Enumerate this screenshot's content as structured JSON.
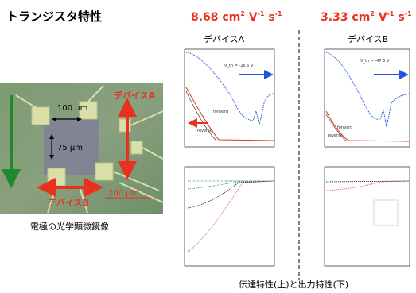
{
  "header": {
    "title": "トランジスタ特性"
  },
  "micrograph": {
    "caption": "電極の光学顕微鏡像",
    "labels": [
      "100 μm",
      "75 μm",
      "200 μm"
    ],
    "device_a": "デバイスA",
    "device_b": "デバイスB"
  },
  "devices": [
    {
      "name": "デバイスA",
      "mobility": [
        "8.68 cm",
        "2",
        " V",
        "-1",
        " s",
        "-1"
      ],
      "vth": "V_th = -26.5 V",
      "forward": "forward",
      "reverse": "reverse"
    },
    {
      "name": "デバイスB",
      "mobility": [
        "3.33 cm",
        "2",
        " V",
        "-1",
        " s",
        "-1"
      ],
      "vth": "V_th = -47.6 V",
      "forward": "forward",
      "reverse": "reverse"
    }
  ],
  "footer": {
    "caption": "伝達特性(上)と出力特性(下)"
  }
}
